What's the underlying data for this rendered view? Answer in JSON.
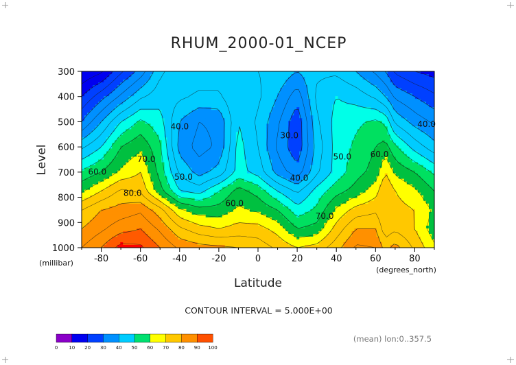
{
  "chart_data": {
    "type": "heatmap",
    "title": "RHUM_2000-01_NCEP",
    "xlabel": "Latitude",
    "xunit": "(degrees_north)",
    "ylabel": "Level",
    "yunit": "(millibar)",
    "xlim": [
      -90,
      90
    ],
    "ylim": [
      1000,
      300
    ],
    "x_ticks": [
      "-80",
      "-60",
      "-40",
      "-20",
      "0",
      "20",
      "40",
      "60",
      "80"
    ],
    "y_ticks": [
      "300",
      "400",
      "500",
      "600",
      "700",
      "800",
      "900",
      "1000"
    ],
    "contour_interval_text": "CONTOUR INTERVAL = 5.000E+00",
    "footer_text": "(mean) lon:0..357.5",
    "levels": [
      0,
      10,
      20,
      30,
      40,
      50,
      60,
      70,
      80,
      90,
      100
    ],
    "level_labels": [
      "0",
      "10",
      "20",
      "30",
      "40",
      "50",
      "60",
      "70",
      "80",
      "90",
      "100"
    ],
    "colors": [
      "#8a00c8",
      "#0000f0",
      "#0040ff",
      "#0080ff",
      "#00c8ff",
      "#00ffe0",
      "#00e050",
      "#00c040",
      "#ffff00",
      "#ffc800",
      "#ff9000",
      "#ff5000",
      "#ff0000"
    ],
    "contour_labels": [
      {
        "text": "40.0",
        "lat": -40,
        "lev": 530
      },
      {
        "text": "30.0",
        "lat": 16,
        "lev": 565
      },
      {
        "text": "50.0",
        "lat": 43,
        "lev": 650
      },
      {
        "text": "60.0",
        "lat": 62,
        "lev": 640
      },
      {
        "text": "40.0",
        "lat": 86,
        "lev": 520
      },
      {
        "text": "40.0",
        "lat": 21,
        "lev": 735
      },
      {
        "text": "60.0",
        "lat": -82,
        "lev": 710
      },
      {
        "text": "70.0",
        "lat": -57,
        "lev": 660
      },
      {
        "text": "50.0",
        "lat": -38,
        "lev": 730
      },
      {
        "text": "80.0",
        "lat": -64,
        "lev": 795
      },
      {
        "text": "60.0",
        "lat": -12,
        "lev": 835
      },
      {
        "text": "70.0",
        "lat": 34,
        "lev": 885
      }
    ],
    "lats": [
      -90,
      -80,
      -70,
      -60,
      -50,
      -40,
      -30,
      -20,
      -10,
      0,
      10,
      20,
      30,
      40,
      50,
      60,
      65,
      70,
      80,
      90
    ],
    "levs": [
      1000,
      925,
      850,
      775,
      700,
      600,
      500,
      400,
      300
    ],
    "values": [
      [
        85,
        90,
        97,
        96,
        90,
        84,
        82,
        81,
        80,
        78,
        74,
        70,
        72,
        78,
        86,
        85,
        78,
        82,
        74,
        66
      ],
      [
        80,
        84,
        88,
        90,
        84,
        76,
        72,
        70,
        72,
        72,
        68,
        60,
        62,
        72,
        80,
        80,
        72,
        74,
        70,
        62
      ],
      [
        75,
        80,
        82,
        84,
        77,
        66,
        62,
        62,
        66,
        64,
        60,
        52,
        56,
        66,
        72,
        74,
        70,
        72,
        70,
        64
      ],
      [
        64,
        70,
        76,
        74,
        62,
        50,
        48,
        55,
        62,
        58,
        50,
        44,
        52,
        58,
        62,
        68,
        75,
        70,
        66,
        60
      ],
      [
        56,
        60,
        66,
        70,
        58,
        44,
        38,
        42,
        52,
        48,
        38,
        32,
        44,
        52,
        58,
        62,
        70,
        64,
        60,
        54
      ],
      [
        44,
        50,
        60,
        64,
        56,
        38,
        33,
        36,
        52,
        45,
        34,
        26,
        42,
        52,
        56,
        60,
        62,
        56,
        48,
        42
      ],
      [
        30,
        40,
        50,
        56,
        52,
        40,
        35,
        36,
        50,
        44,
        36,
        26,
        44,
        52,
        54,
        56,
        54,
        44,
        38,
        34
      ],
      [
        20,
        28,
        36,
        44,
        48,
        46,
        44,
        44,
        50,
        46,
        40,
        32,
        46,
        50,
        48,
        44,
        40,
        34,
        30,
        26
      ],
      [
        10,
        14,
        24,
        32,
        44,
        48,
        48,
        48,
        48,
        45,
        44,
        40,
        44,
        44,
        40,
        34,
        30,
        24,
        20,
        18
      ]
    ]
  }
}
